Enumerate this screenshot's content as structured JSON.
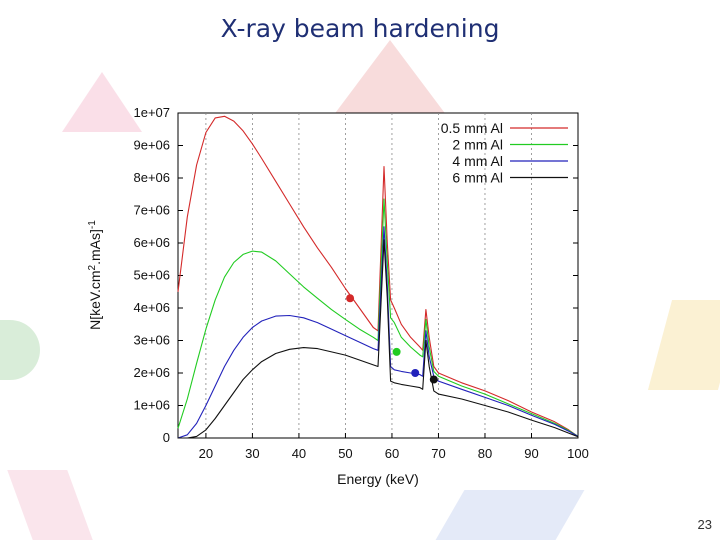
{
  "slide": {
    "title": "X-ray beam hardening",
    "page_number": "23"
  },
  "colors": {
    "title": "#1f2f74",
    "series": [
      "#d42a2a",
      "#22cc22",
      "#2222bb",
      "#111111"
    ]
  },
  "chart_data": {
    "type": "line",
    "title": "",
    "xlabel": "Energy (keV)",
    "ylabel_parts": [
      "N[keV.cm",
      "2",
      ".mAs]",
      "-1"
    ],
    "xlim": [
      14,
      100
    ],
    "ylim": [
      0,
      10000000
    ],
    "xticks": [
      20,
      30,
      40,
      50,
      60,
      70,
      80,
      90,
      100
    ],
    "yticks": [
      0,
      1000000,
      2000000,
      3000000,
      4000000,
      5000000,
      6000000,
      7000000,
      8000000,
      9000000,
      10000000
    ],
    "ytick_labels": [
      "0",
      "1e+06",
      "2e+06",
      "3e+06",
      "4e+06",
      "5e+06",
      "6e+06",
      "7e+06",
      "8e+06",
      "9e+06",
      "1e+07"
    ],
    "grid": "vertical dashed",
    "legend_position": "top-right",
    "series": [
      {
        "name": "0.5 mm Al",
        "color": "#d42a2a",
        "points": [
          [
            14,
            4500000
          ],
          [
            16,
            6800000
          ],
          [
            18,
            8400000
          ],
          [
            20,
            9400000
          ],
          [
            22,
            9850000
          ],
          [
            24,
            9900000
          ],
          [
            26,
            9750000
          ],
          [
            28,
            9450000
          ],
          [
            30,
            9050000
          ],
          [
            32,
            8600000
          ],
          [
            35,
            7900000
          ],
          [
            38,
            7200000
          ],
          [
            41,
            6500000
          ],
          [
            44,
            5850000
          ],
          [
            47,
            5250000
          ],
          [
            50,
            4600000
          ],
          [
            53,
            4000000
          ],
          [
            56,
            3400000
          ],
          [
            57,
            3300000
          ],
          [
            58.3,
            8350000
          ],
          [
            59,
            6000000
          ],
          [
            59.7,
            4250000
          ],
          [
            60.5,
            4000000
          ],
          [
            62,
            3500000
          ],
          [
            64,
            3100000
          ],
          [
            66,
            2800000
          ],
          [
            66.6,
            2700000
          ],
          [
            67.3,
            3950000
          ],
          [
            68,
            3100000
          ],
          [
            69,
            2200000
          ],
          [
            70,
            2000000
          ],
          [
            75,
            1700000
          ],
          [
            80,
            1450000
          ],
          [
            85,
            1150000
          ],
          [
            90,
            800000
          ],
          [
            95,
            500000
          ],
          [
            98,
            250000
          ],
          [
            100,
            50000
          ]
        ],
        "marker": [
          51,
          4300000
        ]
      },
      {
        "name": "2 mm Al",
        "color": "#22cc22",
        "points": [
          [
            14,
            300000
          ],
          [
            16,
            1200000
          ],
          [
            18,
            2300000
          ],
          [
            20,
            3350000
          ],
          [
            22,
            4250000
          ],
          [
            24,
            4950000
          ],
          [
            26,
            5400000
          ],
          [
            28,
            5650000
          ],
          [
            30,
            5750000
          ],
          [
            32,
            5720000
          ],
          [
            35,
            5450000
          ],
          [
            38,
            5050000
          ],
          [
            41,
            4650000
          ],
          [
            44,
            4300000
          ],
          [
            47,
            3950000
          ],
          [
            50,
            3650000
          ],
          [
            53,
            3350000
          ],
          [
            56,
            3100000
          ],
          [
            57,
            3000000
          ],
          [
            58.3,
            7350000
          ],
          [
            59,
            5400000
          ],
          [
            59.7,
            3700000
          ],
          [
            60.5,
            3550000
          ],
          [
            62,
            3100000
          ],
          [
            64,
            2800000
          ],
          [
            66,
            2550000
          ],
          [
            66.6,
            2500000
          ],
          [
            67.3,
            3650000
          ],
          [
            68,
            2800000
          ],
          [
            69,
            2050000
          ],
          [
            70,
            1900000
          ],
          [
            75,
            1600000
          ],
          [
            80,
            1350000
          ],
          [
            85,
            1050000
          ],
          [
            90,
            750000
          ],
          [
            95,
            450000
          ],
          [
            98,
            230000
          ],
          [
            100,
            50000
          ]
        ],
        "marker": [
          61,
          2650000
        ]
      },
      {
        "name": "4 mm Al",
        "color": "#2222bb",
        "points": [
          [
            14,
            0
          ],
          [
            16,
            100000
          ],
          [
            18,
            450000
          ],
          [
            20,
            1000000
          ],
          [
            22,
            1600000
          ],
          [
            24,
            2200000
          ],
          [
            26,
            2700000
          ],
          [
            28,
            3100000
          ],
          [
            30,
            3400000
          ],
          [
            32,
            3600000
          ],
          [
            35,
            3750000
          ],
          [
            38,
            3770000
          ],
          [
            41,
            3700000
          ],
          [
            44,
            3550000
          ],
          [
            47,
            3350000
          ],
          [
            50,
            3150000
          ],
          [
            53,
            2950000
          ],
          [
            56,
            2750000
          ],
          [
            57,
            2700000
          ],
          [
            58.3,
            6500000
          ],
          [
            59,
            4700000
          ],
          [
            59.7,
            2200000
          ],
          [
            60.5,
            2100000
          ],
          [
            62,
            2050000
          ],
          [
            64,
            2000000
          ],
          [
            66,
            1950000
          ],
          [
            66.6,
            1900000
          ],
          [
            67.3,
            3300000
          ],
          [
            68,
            2500000
          ],
          [
            69,
            1900000
          ],
          [
            70,
            1750000
          ],
          [
            75,
            1500000
          ],
          [
            80,
            1250000
          ],
          [
            85,
            1000000
          ],
          [
            90,
            700000
          ],
          [
            95,
            420000
          ],
          [
            98,
            210000
          ],
          [
            100,
            50000
          ]
        ],
        "marker": [
          65,
          2000000
        ]
      },
      {
        "name": "6 mm Al",
        "color": "#111111",
        "points": [
          [
            14,
            0
          ],
          [
            16,
            0
          ],
          [
            18,
            50000
          ],
          [
            20,
            250000
          ],
          [
            22,
            600000
          ],
          [
            24,
            1000000
          ],
          [
            26,
            1400000
          ],
          [
            28,
            1800000
          ],
          [
            30,
            2100000
          ],
          [
            32,
            2350000
          ],
          [
            35,
            2600000
          ],
          [
            38,
            2730000
          ],
          [
            41,
            2780000
          ],
          [
            44,
            2750000
          ],
          [
            47,
            2650000
          ],
          [
            50,
            2550000
          ],
          [
            53,
            2400000
          ],
          [
            56,
            2250000
          ],
          [
            57,
            2200000
          ],
          [
            58.3,
            6100000
          ],
          [
            59,
            4300000
          ],
          [
            59.7,
            1750000
          ],
          [
            60.5,
            1700000
          ],
          [
            62,
            1650000
          ],
          [
            64,
            1600000
          ],
          [
            66,
            1550000
          ],
          [
            66.6,
            1500000
          ],
          [
            67.3,
            3000000
          ],
          [
            68,
            2200000
          ],
          [
            69,
            1450000
          ],
          [
            70,
            1350000
          ],
          [
            75,
            1200000
          ],
          [
            80,
            1000000
          ],
          [
            85,
            800000
          ],
          [
            90,
            550000
          ],
          [
            95,
            320000
          ],
          [
            98,
            150000
          ],
          [
            100,
            40000
          ]
        ],
        "marker": [
          69,
          1800000
        ]
      }
    ]
  }
}
